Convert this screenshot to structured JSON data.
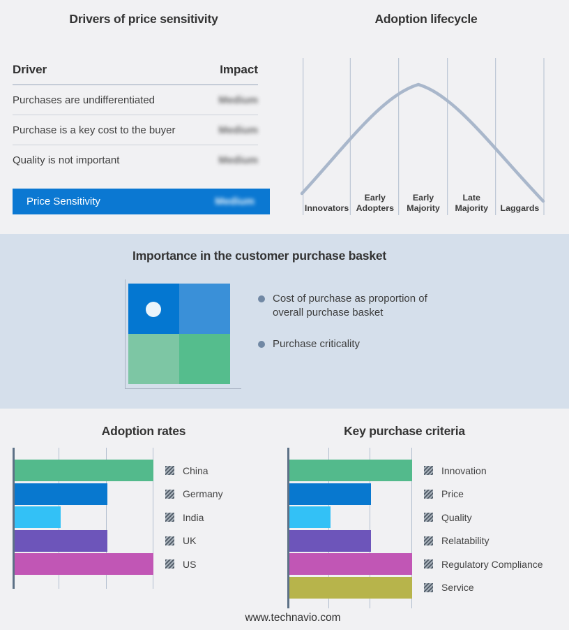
{
  "colors": {
    "bg": "#f1f1f3",
    "band_bg": "#d5dfeb",
    "accent_blue": "#0b78d2",
    "curve": "#a9b7cb",
    "gridline": "#b2becf",
    "axis": "#5d7186",
    "bullet_marker": "#7188a4"
  },
  "drivers_panel": {
    "title": "Drivers of price sensitivity",
    "col_driver": "Driver",
    "col_impact": "Impact",
    "rows": [
      {
        "driver": "Purchases are undifferentiated",
        "impact": "Medium"
      },
      {
        "driver": "Purchase is a key cost to the buyer",
        "impact": "Medium"
      },
      {
        "driver": "Quality is not important",
        "impact": "Medium"
      }
    ],
    "summary": {
      "label": "Price Sensitivity",
      "impact": "Medium",
      "bg": "#0b78d2"
    }
  },
  "basket": {
    "title": "Importance in the customer purchase basket",
    "bullets": [
      "Cost of purchase as proportion of overall purchase basket",
      "Purchase criticality"
    ],
    "quadrant_colors": [
      "#0477d1",
      "#3a90d8",
      "#7dc6a4",
      "#55bd8d"
    ]
  },
  "footer": "www.technavio.com",
  "chart_data": [
    {
      "type": "line",
      "title": "Adoption lifecycle",
      "x_categories": [
        "Innovators",
        "Early Adopters",
        "Early Majority",
        "Late Majority",
        "Laggards"
      ],
      "shape": "bell curve peaking between Early Majority boundaries",
      "curve_color": "#a9b7cb",
      "grid": "vertical stage separators",
      "legend_position": "none"
    },
    {
      "type": "bar",
      "orientation": "horizontal",
      "title": "Adoption rates",
      "categories": [
        "China",
        "Germany",
        "India",
        "UK",
        "US"
      ],
      "values": [
        3,
        2,
        1,
        2,
        3
      ],
      "xlim": [
        0,
        3
      ],
      "xlabel": "",
      "ylabel": "",
      "grid": true,
      "legend_position": "right",
      "colors": [
        "#53ba8c",
        "#0878cf",
        "#33c1f6",
        "#6d55ba",
        "#c156b5"
      ]
    },
    {
      "type": "bar",
      "orientation": "horizontal",
      "title": "Key purchase criteria",
      "categories": [
        "Innovation",
        "Price",
        "Quality",
        "Relatability",
        "Regulatory Compliance",
        "Service"
      ],
      "values": [
        3,
        2,
        1,
        2,
        3,
        3
      ],
      "xlim": [
        0,
        3
      ],
      "xlabel": "",
      "ylabel": "",
      "grid": true,
      "legend_position": "right",
      "colors": [
        "#53ba8c",
        "#0878cf",
        "#33c1f6",
        "#6d55ba",
        "#c156b5",
        "#b7b44b"
      ]
    }
  ]
}
